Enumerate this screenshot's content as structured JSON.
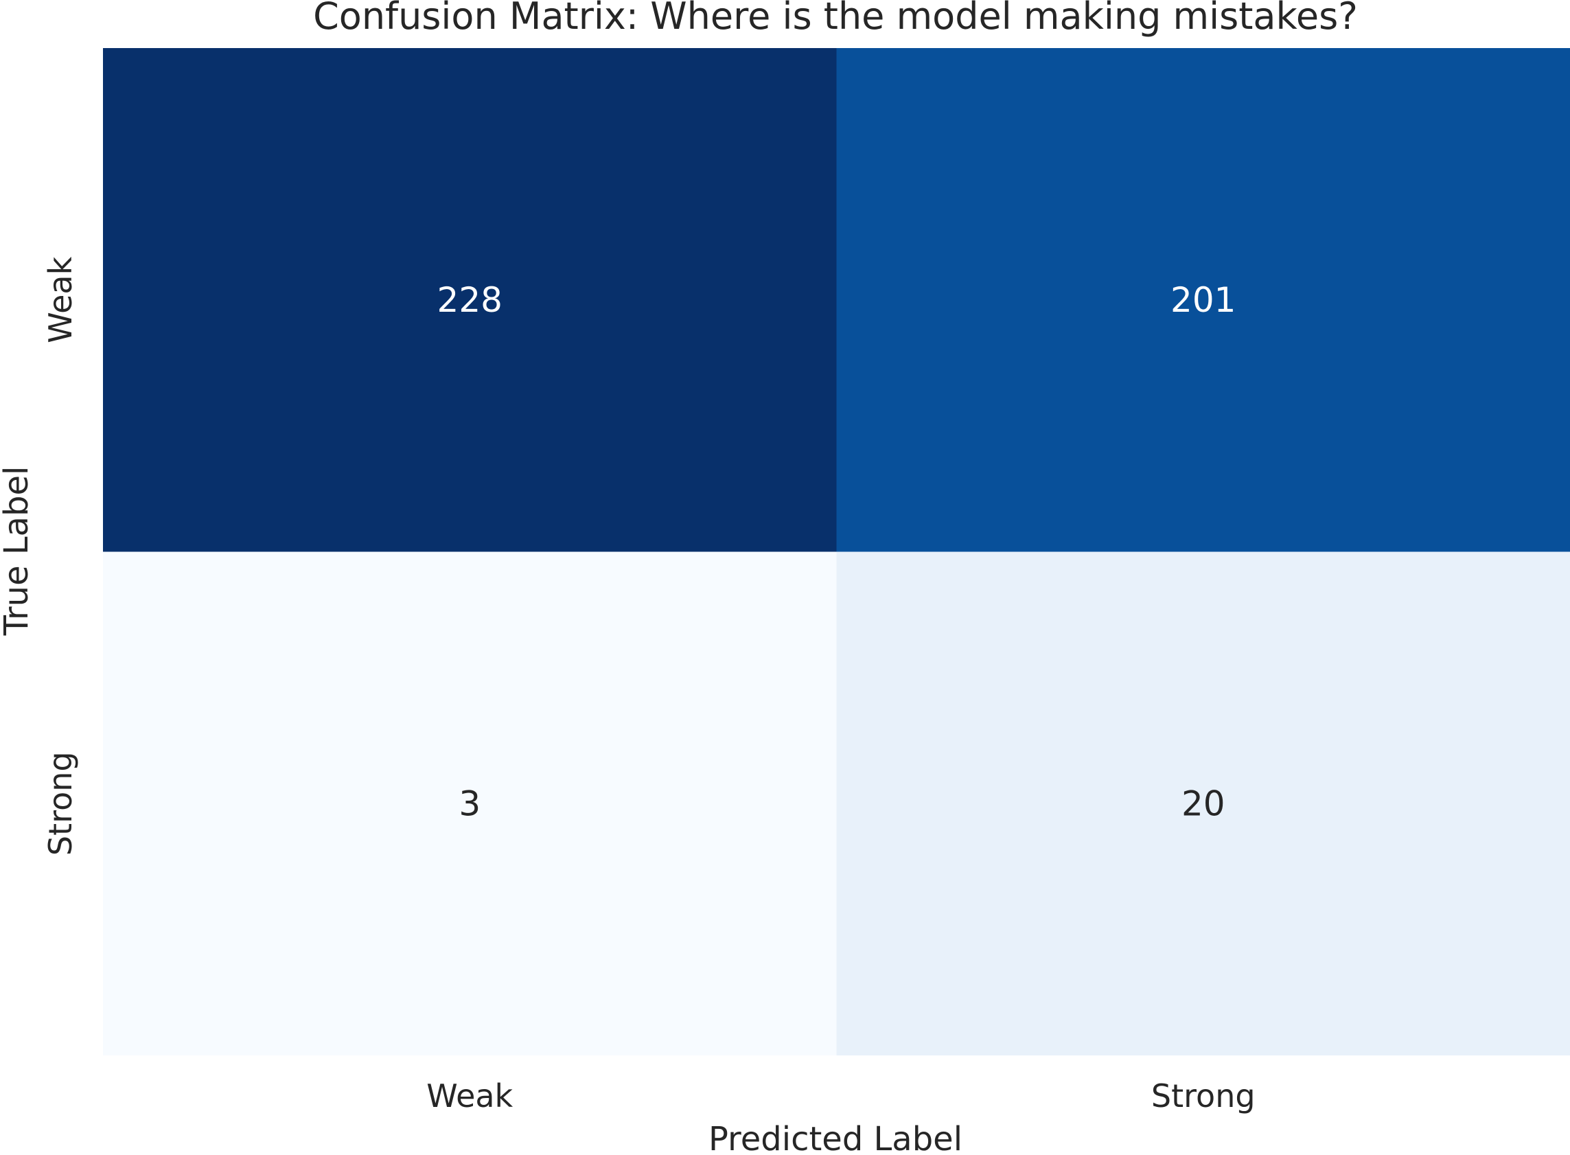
{
  "chart_data": {
    "type": "heatmap",
    "title": "Confusion Matrix: Where is the model making mistakes?",
    "xlabel": "Predicted Label",
    "ylabel": "True Label",
    "x_categories": [
      "Weak",
      "Strong"
    ],
    "y_categories": [
      "Weak",
      "Strong"
    ],
    "values": [
      [
        228,
        201
      ],
      [
        3,
        20
      ]
    ],
    "colormap": "Blues",
    "colorbar": false,
    "grid": false
  },
  "colors": {
    "text_dark": "#262626",
    "text_light": "#ffffff",
    "scale": [
      "#f7fbff",
      "#deebf7",
      "#c6dbef",
      "#9ecae1",
      "#6baed6",
      "#4292c6",
      "#2171b5",
      "#08519c",
      "#08306b"
    ]
  }
}
